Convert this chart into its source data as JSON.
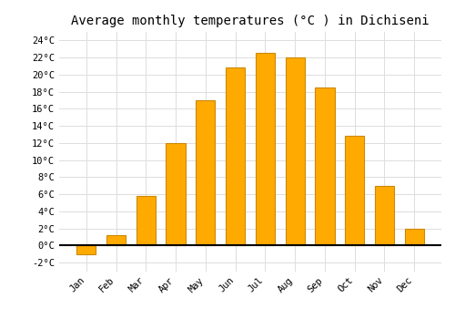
{
  "title": "Average monthly temperatures (°C ) in Dichiseni",
  "months": [
    "Jan",
    "Feb",
    "Mar",
    "Apr",
    "May",
    "Jun",
    "Jul",
    "Aug",
    "Sep",
    "Oct",
    "Nov",
    "Dec"
  ],
  "values": [
    -1.0,
    1.2,
    5.8,
    12.0,
    17.0,
    20.8,
    22.5,
    22.0,
    18.5,
    12.8,
    7.0,
    2.0
  ],
  "bar_color": "#FFAA00",
  "bar_edge_color": "#CC8800",
  "ylim": [
    -3,
    25
  ],
  "yticks": [
    -2,
    0,
    2,
    4,
    6,
    8,
    10,
    12,
    14,
    16,
    18,
    20,
    22,
    24
  ],
  "ytick_labels": [
    "-2°C",
    "0°C",
    "2°C",
    "4°C",
    "6°C",
    "8°C",
    "10°C",
    "12°C",
    "14°C",
    "16°C",
    "18°C",
    "20°C",
    "22°C",
    "24°C"
  ],
  "background_color": "#ffffff",
  "grid_color": "#dddddd",
  "title_fontsize": 10,
  "tick_fontsize": 7.5,
  "font_family": "monospace"
}
